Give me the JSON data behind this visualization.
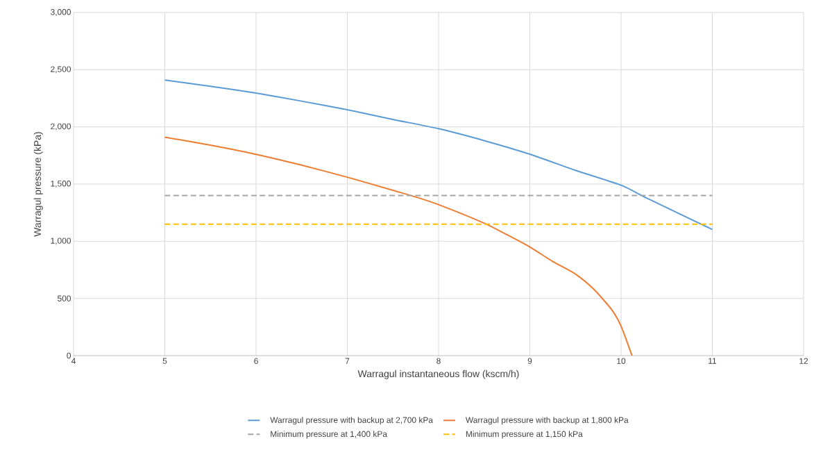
{
  "chart_data": {
    "type": "line",
    "xlabel": "Warragul  instantaneous flow (kscm/h)",
    "ylabel": "Warragul pressure (kPa)",
    "xlim": [
      4,
      12
    ],
    "xticks": [
      4,
      5,
      6,
      7,
      8,
      9,
      10,
      11,
      12
    ],
    "ylim": [
      0,
      3000
    ],
    "yticks": [
      {
        "value": 0,
        "label": "0"
      },
      {
        "value": 500,
        "label": "500"
      },
      {
        "value": 1000,
        "label": "1,000"
      },
      {
        "value": 1500,
        "label": "1,500"
      },
      {
        "value": 2000,
        "label": "2,000"
      },
      {
        "value": 2500,
        "label": "2,500"
      },
      {
        "value": 3000,
        "label": "3,000"
      }
    ],
    "grid": true,
    "legend": "bottom",
    "marker": "none",
    "series": [
      {
        "name": "Warragul pressure with backup at 2,700 kPa",
        "color": "#5b9bd5",
        "line_style": "solid",
        "x": [
          5,
          5.5,
          6,
          6.5,
          7,
          7.5,
          8,
          8.5,
          9,
          9.5,
          10,
          10.3,
          11
        ],
        "values": [
          2410,
          2355,
          2295,
          2225,
          2150,
          2065,
          1984,
          1880,
          1761,
          1620,
          1490,
          1370,
          1103
        ]
      },
      {
        "name": "Warragul pressure with backup at 1,800 kPa",
        "color": "#ed7d31",
        "line_style": "solid",
        "x": [
          5,
          5.5,
          6,
          6.5,
          7,
          7.5,
          7.75,
          8,
          8.5,
          8.75,
          9,
          9.25,
          9.5,
          9.7,
          9.9,
          10,
          10.12
        ],
        "values": [
          1910,
          1840,
          1760,
          1665,
          1560,
          1445,
          1387,
          1320,
          1158,
          1057,
          950,
          824,
          713,
          581,
          399,
          257,
          0
        ]
      },
      {
        "name": "Minimum pressure at 1,400 kPa",
        "color": "#a5a5a5",
        "line_style": "dashed",
        "x": [
          5,
          11
        ],
        "values": [
          1400,
          1400
        ]
      },
      {
        "name": "Minimum pressure at 1,150 kPa",
        "color": "#ffc000",
        "line_style": "dashed",
        "x": [
          5,
          11
        ],
        "values": [
          1150,
          1150
        ]
      }
    ]
  }
}
